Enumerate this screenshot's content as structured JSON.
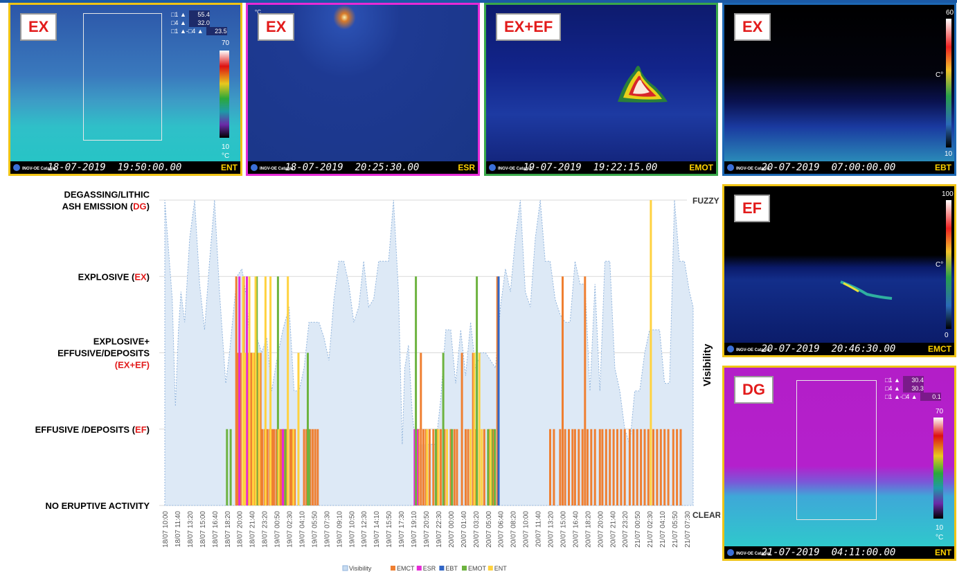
{
  "panels": [
    {
      "tag": "EX",
      "date": "18-07-2019",
      "time": "19:50:00.00",
      "camera": "ENT",
      "org": "INGV-OE Catania",
      "border": "#f0c414",
      "readout": [
        {
          "label": "□1 ▲",
          "value": "55.4"
        },
        {
          "label": "□4 ▲",
          "value": "32.0"
        },
        {
          "label": "□1 ▲-□4 ▲",
          "value": "23.5"
        }
      ],
      "scale_max": "70",
      "scale_min": "10",
      "unit": "°C"
    },
    {
      "tag": "EX",
      "date": "18-07-2019",
      "time": "20:25:30.00",
      "camera": "ESR",
      "org": "INGV-OE Catania",
      "border": "#e62ad6",
      "corner": "°C"
    },
    {
      "tag": "EX+EF",
      "date": "19-07-2019",
      "time": "19:22:15.00",
      "camera": "EMOT",
      "org": "INGV-OE Catania",
      "border": "#39a84a"
    },
    {
      "tag": "EX",
      "date": "20-07-2019",
      "time": "07:00:00.00",
      "camera": "EBT",
      "org": "INGV-OE Catania",
      "border": "#1c67b3",
      "scale_max": "60",
      "scale_min": "10",
      "unit": "C°"
    },
    {
      "tag": "EF",
      "date": "20-07-2019",
      "time": "20:46:30.00",
      "camera": "EMCT",
      "org": "INGV-OE Catania",
      "border": "#f0c414",
      "scale_max": "100",
      "scale_min": "0",
      "unit": "C°"
    },
    {
      "tag": "DG",
      "date": "21-07-2019",
      "time": "04:11:00.00",
      "camera": "ENT",
      "org": "INGV-OE Catania",
      "border": "#f0c414",
      "readout": [
        {
          "label": "□1 ▲",
          "value": "30.4"
        },
        {
          "label": "□4 ▲",
          "value": "30.3"
        },
        {
          "label": "□1 ▲-□4 ▲",
          "value": "0.1"
        }
      ],
      "scale_max": "70",
      "scale_min": "10",
      "unit": "°C"
    }
  ],
  "chart_data": {
    "type": "bar",
    "categories_shown": [
      "18/07 10:00",
      "18/07 11:40",
      "18/07 13:20",
      "18/07 15:00",
      "18/07 16:40",
      "18/07 18:20",
      "18/07 20:00",
      "18/07 21:40",
      "18/07 23:20",
      "19/07 00:50",
      "19/07 02:30",
      "19/07 04:10",
      "19/07 05:50",
      "19/07 07:30",
      "19/07 09:10",
      "19/07 10:50",
      "19/07 12:30",
      "19/07 14:10",
      "19/07 15:50",
      "19/07 17:30",
      "19/07 19:10",
      "19/07 20:50",
      "19/07 22:30",
      "20/07 00:00",
      "20/07 01:40",
      "20/07 03:20",
      "20/07 05:00",
      "20/07 06:40",
      "20/07 08:20",
      "20/07 10:00",
      "20/07 11:40",
      "20/07 13:20",
      "20/07 15:00",
      "20/07 16:40",
      "20/07 18:20",
      "20/07 20:00",
      "20/07 21:40",
      "20/07 23:20",
      "21/07 00:50",
      "21/07 02:30",
      "21/07 04:10",
      "21/07 05:50",
      "21/07 07:30"
    ],
    "x_range": [
      0,
      42
    ],
    "y_left_labels": [
      {
        "level": 0,
        "parts": [
          {
            "t": "NO ERUPTIVE ACTIVITY",
            "c": "#000"
          }
        ]
      },
      {
        "level": 1,
        "parts": [
          {
            "t": "EFFUSIVE /DEPOSITS (",
            "c": "#000"
          },
          {
            "t": "EF",
            "c": "#e21b1b"
          },
          {
            "t": ")",
            "c": "#000"
          }
        ]
      },
      {
        "level": 2,
        "lines": [
          [
            {
              "t": "EXPLOSIVE+",
              "c": "#000"
            }
          ],
          [
            {
              "t": "EFFUSIVE/DEPOSITS",
              "c": "#000"
            }
          ],
          [
            {
              "t": "(",
              "c": "#e21b1b"
            },
            {
              "t": "EX+EF",
              "c": "#e21b1b"
            },
            {
              "t": ")",
              "c": "#e21b1b"
            }
          ]
        ]
      },
      {
        "level": 3,
        "parts": [
          {
            "t": "EXPLOSIVE (",
            "c": "#000"
          },
          {
            "t": "EX",
            "c": "#e21b1b"
          },
          {
            "t": ")",
            "c": "#000"
          }
        ]
      },
      {
        "level": 4,
        "lines": [
          [
            {
              "t": "DEGASSING/LITHIC",
              "c": "#000"
            }
          ],
          [
            {
              "t": "ASH EMISSION (",
              "c": "#000"
            },
            {
              "t": "DG",
              "c": "#e21b1b"
            },
            {
              "t": ")",
              "c": "#000"
            }
          ]
        ]
      }
    ],
    "y_right_top": "FUZZY",
    "y_right_bottom": "CLEAR",
    "y_right_title": "Visibility",
    "ylim": [
      0,
      4
    ],
    "gridlines": true,
    "legend_position": "bottom",
    "legend": [
      {
        "name": "Visibility",
        "color": "#c9dcf0"
      },
      {
        "name": "EMCT",
        "color": "#ef7f31"
      },
      {
        "name": "ESR",
        "color": "#e62ad6"
      },
      {
        "name": "EBT",
        "color": "#3166c6"
      },
      {
        "name": "EMOT",
        "color": "#6db33f"
      },
      {
        "name": "ENT",
        "color": "#ffd23f"
      }
    ],
    "visibility": [
      [
        0,
        4
      ],
      [
        0.6,
        2.7
      ],
      [
        0.85,
        1.3
      ],
      [
        1.1,
        2.3
      ],
      [
        1.3,
        2.8
      ],
      [
        1.6,
        2.4
      ],
      [
        2.0,
        3.5
      ],
      [
        2.4,
        4
      ],
      [
        2.8,
        2.9
      ],
      [
        3.2,
        2.3
      ],
      [
        3.6,
        3.2
      ],
      [
        4.0,
        4
      ],
      [
        4.4,
        2.8
      ],
      [
        4.9,
        1.6
      ],
      [
        5.2,
        2.0
      ],
      [
        5.5,
        2.5
      ],
      [
        5.8,
        3.0
      ],
      [
        6.2,
        3.1
      ],
      [
        6.6,
        2.7
      ],
      [
        7.0,
        1.6
      ],
      [
        7.4,
        2.2
      ],
      [
        7.8,
        2.0
      ],
      [
        8.2,
        2.2
      ],
      [
        8.6,
        1.5
      ],
      [
        9.0,
        1.9
      ],
      [
        9.5,
        2.3
      ],
      [
        10.0,
        2.6
      ],
      [
        10.4,
        1.5
      ],
      [
        10.8,
        1.5
      ],
      [
        11.2,
        1.8
      ],
      [
        11.6,
        2.4
      ],
      [
        12.0,
        2.4
      ],
      [
        12.4,
        2.4
      ],
      [
        12.8,
        2.2
      ],
      [
        13.2,
        1.9
      ],
      [
        13.6,
        2.7
      ],
      [
        14.0,
        3.2
      ],
      [
        14.4,
        3.2
      ],
      [
        14.8,
        2.9
      ],
      [
        15.2,
        2.4
      ],
      [
        15.6,
        2.6
      ],
      [
        16.0,
        3.2
      ],
      [
        16.4,
        2.6
      ],
      [
        16.8,
        2.7
      ],
      [
        17.2,
        3.2
      ],
      [
        17.6,
        3.2
      ],
      [
        18.0,
        3.2
      ],
      [
        18.4,
        4
      ],
      [
        18.8,
        2.8
      ],
      [
        19.1,
        0.8
      ],
      [
        19.3,
        1.8
      ],
      [
        19.6,
        2.1
      ],
      [
        19.9,
        1.2
      ],
      [
        20.2,
        0.8
      ],
      [
        20.6,
        0.8
      ],
      [
        21.0,
        0.8
      ],
      [
        21.4,
        0.8
      ],
      [
        21.8,
        0.8
      ],
      [
        22.2,
        1.4
      ],
      [
        22.6,
        2.3
      ],
      [
        23.0,
        2.3
      ],
      [
        23.4,
        1.6
      ],
      [
        23.8,
        2.3
      ],
      [
        24.2,
        1.7
      ],
      [
        24.6,
        2.4
      ],
      [
        25.0,
        1.8
      ],
      [
        25.4,
        2.0
      ],
      [
        25.8,
        2.0
      ],
      [
        26.2,
        1.9
      ],
      [
        26.6,
        1.8
      ],
      [
        27.0,
        2.6
      ],
      [
        27.4,
        3.1
      ],
      [
        27.8,
        2.8
      ],
      [
        28.2,
        3.5
      ],
      [
        28.6,
        4
      ],
      [
        29.0,
        2.8
      ],
      [
        29.4,
        2.6
      ],
      [
        29.8,
        3.5
      ],
      [
        30.2,
        4
      ],
      [
        30.6,
        3.2
      ],
      [
        31.0,
        3.2
      ],
      [
        31.4,
        2.7
      ],
      [
        31.8,
        2.5
      ],
      [
        32.2,
        2.4
      ],
      [
        32.6,
        2.4
      ],
      [
        33.0,
        3.2
      ],
      [
        33.4,
        2.9
      ],
      [
        33.8,
        2.9
      ],
      [
        34.2,
        1.5
      ],
      [
        34.6,
        2.9
      ],
      [
        35.0,
        1.5
      ],
      [
        35.4,
        3.2
      ],
      [
        35.8,
        3.2
      ],
      [
        36.2,
        1.8
      ],
      [
        36.6,
        1.5
      ],
      [
        37.0,
        1.0
      ],
      [
        37.4,
        0.8
      ],
      [
        37.8,
        1.5
      ],
      [
        38.2,
        1.5
      ],
      [
        38.6,
        2.0
      ],
      [
        39.0,
        2.3
      ],
      [
        39.4,
        2.3
      ],
      [
        39.8,
        2.3
      ],
      [
        40.2,
        1.6
      ],
      [
        40.6,
        1.6
      ],
      [
        41.0,
        4
      ],
      [
        41.4,
        3.2
      ],
      [
        41.8,
        3.2
      ],
      [
        42.2,
        2.8
      ],
      [
        42.5,
        2.6
      ]
    ],
    "series": [
      {
        "name": "EMCT",
        "color": "#ef7f31",
        "bars": [
          [
            5.75,
            3
          ],
          [
            5.9,
            2
          ],
          [
            6.1,
            2
          ],
          [
            6.35,
            3
          ],
          [
            6.5,
            2
          ],
          [
            6.7,
            2
          ],
          [
            6.9,
            2
          ],
          [
            7.05,
            2
          ],
          [
            7.25,
            2
          ],
          [
            7.5,
            2
          ],
          [
            7.7,
            2
          ],
          [
            7.85,
            1
          ],
          [
            8.05,
            1
          ],
          [
            8.25,
            1
          ],
          [
            8.45,
            1
          ],
          [
            8.65,
            1
          ],
          [
            8.8,
            1
          ],
          [
            9.0,
            1
          ],
          [
            9.2,
            1
          ],
          [
            9.35,
            1
          ],
          [
            9.6,
            1
          ],
          [
            9.8,
            1
          ],
          [
            10.1,
            1
          ],
          [
            10.25,
            1
          ],
          [
            10.45,
            1
          ],
          [
            11.2,
            1
          ],
          [
            11.4,
            1
          ],
          [
            11.7,
            1
          ],
          [
            11.9,
            1
          ],
          [
            12.1,
            1
          ],
          [
            12.3,
            1
          ],
          [
            20.2,
            1
          ],
          [
            20.4,
            1
          ],
          [
            20.6,
            2
          ],
          [
            20.8,
            1
          ],
          [
            21.0,
            1
          ],
          [
            21.3,
            1
          ],
          [
            21.6,
            1
          ],
          [
            21.9,
            1
          ],
          [
            22.2,
            1
          ],
          [
            22.5,
            1
          ],
          [
            23.0,
            1
          ],
          [
            23.3,
            1
          ],
          [
            23.5,
            1
          ],
          [
            23.9,
            2
          ],
          [
            24.2,
            1
          ],
          [
            24.4,
            1
          ],
          [
            24.8,
            2
          ],
          [
            25.0,
            1
          ],
          [
            25.3,
            1
          ],
          [
            25.7,
            1
          ],
          [
            26.1,
            1
          ],
          [
            26.4,
            1
          ],
          [
            26.75,
            3
          ],
          [
            31.0,
            1
          ],
          [
            31.3,
            1
          ],
          [
            31.8,
            1
          ],
          [
            32.0,
            3
          ],
          [
            32.2,
            1
          ],
          [
            32.5,
            1
          ],
          [
            32.8,
            1
          ],
          [
            33.0,
            1
          ],
          [
            33.3,
            1
          ],
          [
            33.6,
            1
          ],
          [
            33.8,
            3
          ],
          [
            34.0,
            1
          ],
          [
            34.3,
            1
          ],
          [
            34.6,
            1
          ],
          [
            35.0,
            1
          ],
          [
            35.2,
            1
          ],
          [
            35.5,
            1
          ],
          [
            35.8,
            1
          ],
          [
            36.1,
            1
          ],
          [
            36.4,
            1
          ],
          [
            36.7,
            1
          ],
          [
            37.0,
            1
          ],
          [
            37.4,
            1
          ],
          [
            37.7,
            1
          ],
          [
            38.0,
            1
          ],
          [
            38.3,
            1
          ],
          [
            38.6,
            1
          ],
          [
            38.9,
            1
          ],
          [
            39.3,
            1
          ],
          [
            39.6,
            1
          ],
          [
            39.9,
            1
          ],
          [
            40.2,
            1
          ],
          [
            40.5,
            1
          ],
          [
            40.9,
            1
          ],
          [
            41.2,
            1
          ],
          [
            41.5,
            1
          ]
        ]
      },
      {
        "name": "ESR",
        "color": "#e62ad6",
        "bars": [
          [
            6.0,
            3
          ],
          [
            6.6,
            3
          ],
          [
            9.5,
            1
          ],
          [
            20.1,
            1
          ],
          [
            20.3,
            1
          ]
        ]
      },
      {
        "name": "EBT",
        "color": "#3166c6",
        "bars": [
          [
            26.85,
            3
          ]
        ]
      },
      {
        "name": "EMOT",
        "color": "#6db33f",
        "bars": [
          [
            5.0,
            1
          ],
          [
            5.3,
            1
          ],
          [
            7.4,
            3
          ],
          [
            9.1,
            3
          ],
          [
            9.7,
            1
          ],
          [
            11.5,
            2
          ],
          [
            11.6,
            1
          ],
          [
            20.2,
            3
          ],
          [
            21.8,
            1
          ],
          [
            22.4,
            2
          ],
          [
            23.1,
            1
          ],
          [
            25.1,
            3
          ],
          [
            26.0,
            1
          ],
          [
            26.3,
            1
          ],
          [
            26.55,
            1
          ]
        ]
      },
      {
        "name": "ENT",
        "color": "#ffd23f",
        "bars": [
          [
            6.3,
            3
          ],
          [
            6.45,
            2
          ],
          [
            6.8,
            3
          ],
          [
            7.1,
            2
          ],
          [
            7.3,
            3
          ],
          [
            7.6,
            2
          ],
          [
            8.1,
            3
          ],
          [
            8.5,
            3
          ],
          [
            9.15,
            1
          ],
          [
            9.9,
            3
          ],
          [
            10.35,
            1
          ],
          [
            10.75,
            2
          ],
          [
            21.1,
            1
          ],
          [
            22.0,
            1
          ],
          [
            22.7,
            1
          ],
          [
            24.6,
            1
          ],
          [
            24.9,
            2
          ],
          [
            25.3,
            2
          ],
          [
            25.5,
            1
          ],
          [
            26.2,
            1
          ],
          [
            39.1,
            4
          ]
        ]
      }
    ]
  }
}
